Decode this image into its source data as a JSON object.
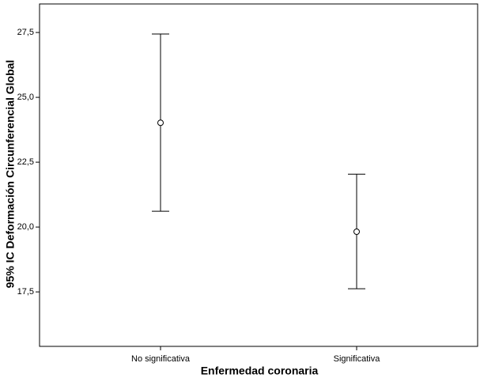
{
  "chart_data": {
    "type": "errorbar",
    "x_label": "Enfermedad coronaria",
    "y_label": "95% IC Deformación Circunferencial Global",
    "categories": [
      "No significativa",
      "Significativa"
    ],
    "values": [
      24.02,
      19.82
    ],
    "lower": [
      20.61,
      17.62
    ],
    "upper": [
      27.44,
      22.04
    ],
    "color": "#000000",
    "ylim": [
      15.4,
      28.6
    ],
    "yticks": [
      {
        "value": 17.5,
        "label": "17,5"
      },
      {
        "value": 20,
        "label": "20,0"
      },
      {
        "value": 22.5,
        "label": "22,5"
      },
      {
        "value": 25,
        "label": "25,0"
      },
      {
        "value": 27.5,
        "label": "27,5"
      }
    ]
  }
}
